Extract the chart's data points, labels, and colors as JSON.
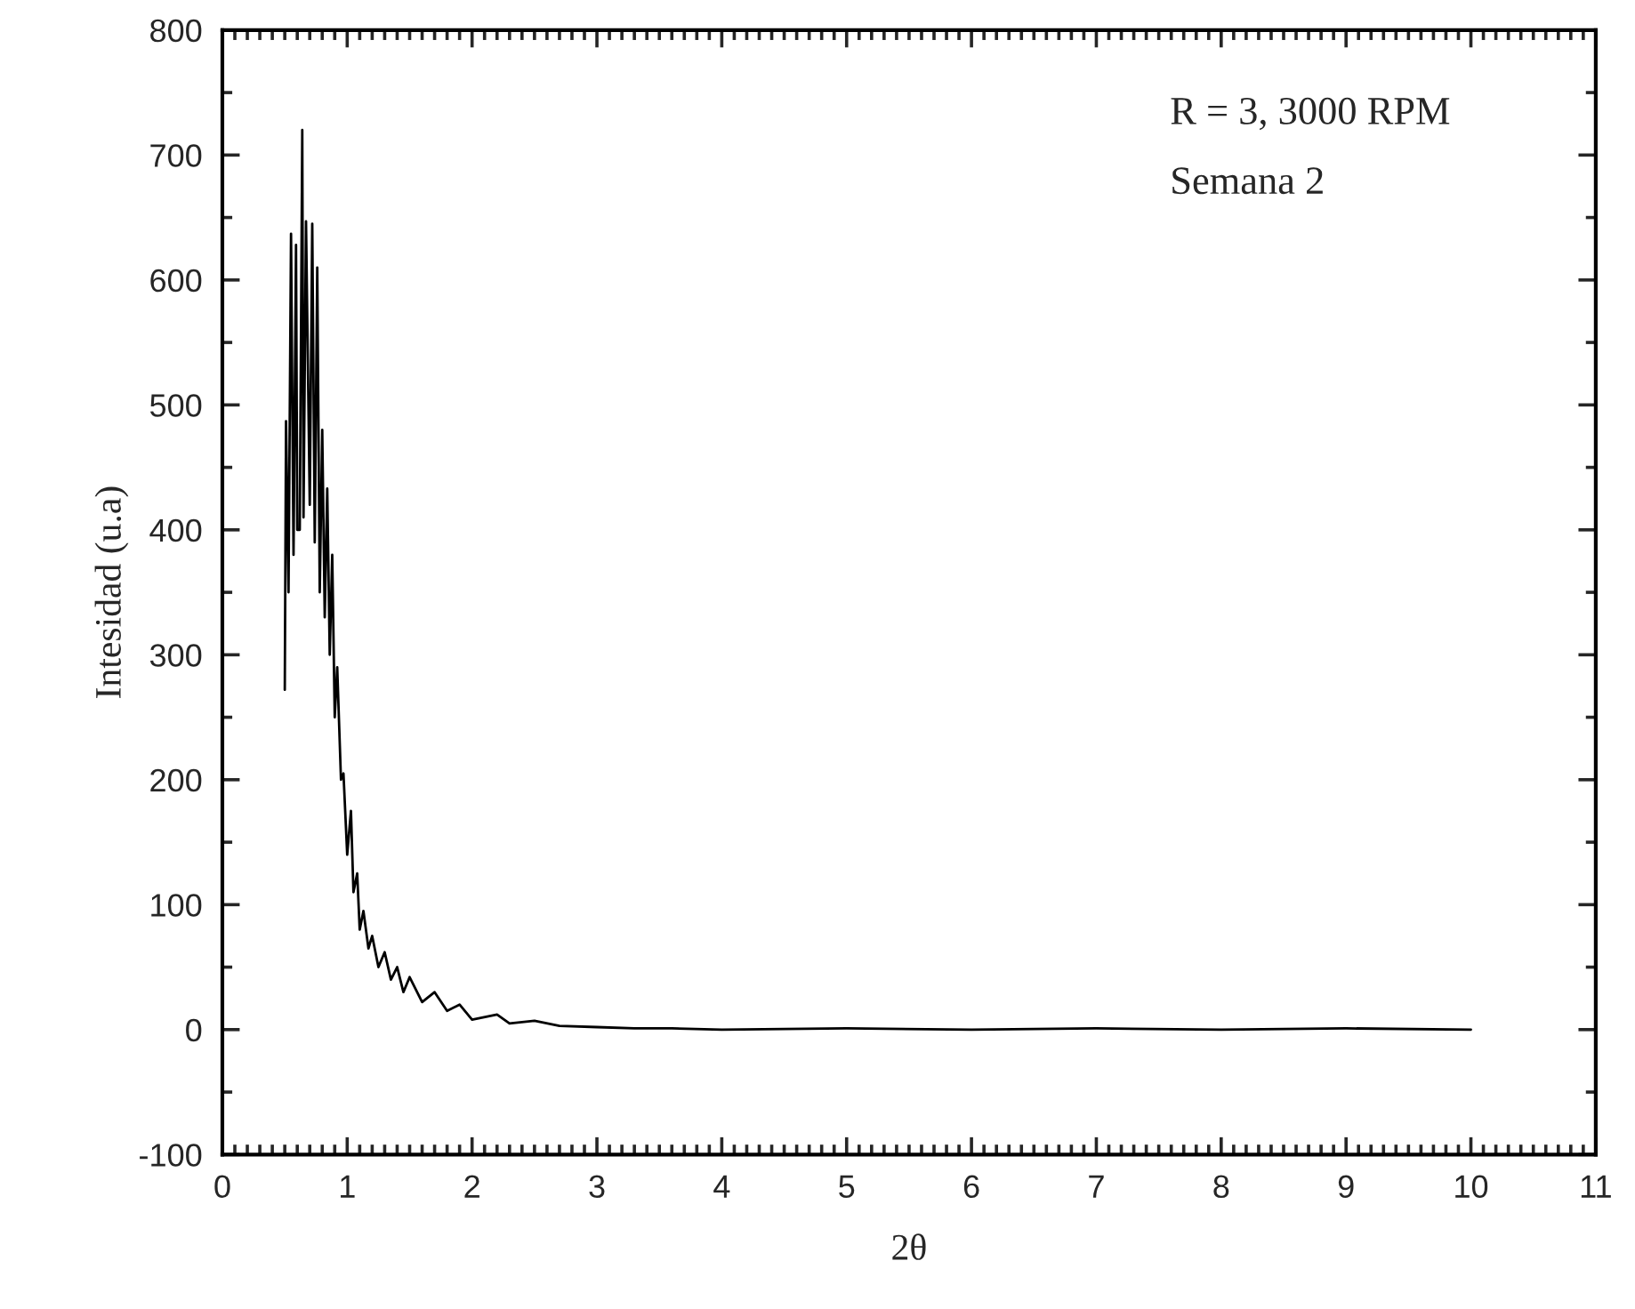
{
  "chart_data": {
    "type": "line",
    "xlabel": "2θ",
    "ylabel": "Intesidad (u.a)",
    "annotations": [
      "R = 3, 3000 RPM",
      "Semana 2"
    ],
    "series": [
      {
        "color": "#000000",
        "x": [
          0.5,
          0.51,
          0.53,
          0.55,
          0.57,
          0.59,
          0.6,
          0.62,
          0.64,
          0.65,
          0.67,
          0.7,
          0.72,
          0.74,
          0.76,
          0.78,
          0.8,
          0.82,
          0.84,
          0.86,
          0.88,
          0.9,
          0.92,
          0.95,
          0.97,
          1.0,
          1.03,
          1.05,
          1.08,
          1.1,
          1.13,
          1.17,
          1.2,
          1.25,
          1.3,
          1.35,
          1.4,
          1.45,
          1.5,
          1.6,
          1.7,
          1.8,
          1.9,
          2.0,
          2.2,
          2.3,
          2.5,
          2.7,
          3.0,
          3.3,
          3.6,
          4.0,
          5.0,
          6.0,
          7.0,
          8.0,
          9.0,
          10.0
        ],
        "values": [
          272,
          487,
          350,
          637,
          380,
          628,
          400,
          400,
          720,
          410,
          647,
          420,
          645,
          390,
          610,
          350,
          480,
          330,
          433,
          300,
          380,
          250,
          290,
          200,
          205,
          140,
          175,
          110,
          125,
          80,
          95,
          65,
          75,
          50,
          62,
          40,
          50,
          30,
          42,
          22,
          30,
          15,
          20,
          8,
          12,
          5,
          7,
          3,
          2,
          1,
          1,
          0,
          1,
          0,
          1,
          0,
          1,
          0
        ]
      }
    ],
    "xlim": [
      0,
      11
    ],
    "xticks": [
      0,
      1,
      2,
      3,
      4,
      5,
      6,
      7,
      8,
      9,
      10,
      11
    ],
    "ylim": [
      -100,
      800
    ],
    "yticks": [
      {
        "value": -100,
        "label": "-100"
      },
      0,
      100,
      200,
      300,
      400,
      500,
      600,
      700,
      800
    ],
    "grid": false,
    "legend": false,
    "marker": "none",
    "line_style": "solid"
  }
}
